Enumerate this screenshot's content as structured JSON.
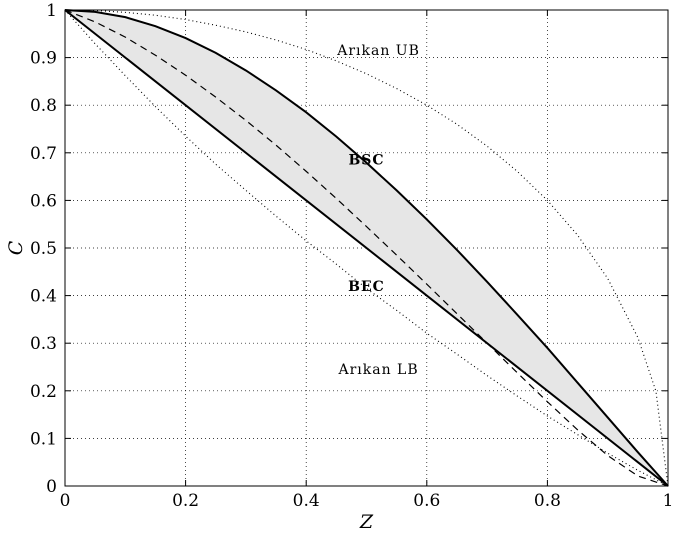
{
  "chart_data": {
    "type": "line",
    "xlabel": "Z",
    "ylabel": "C",
    "xlim": [
      0,
      1
    ],
    "ylim": [
      0,
      1
    ],
    "grid": true,
    "x_ticks": [
      "0",
      "0.2",
      "0.4",
      "0.6",
      "0.8",
      "1"
    ],
    "y_ticks": [
      "0",
      "0.1",
      "0.2",
      "0.3",
      "0.4",
      "0.5",
      "0.6",
      "0.7",
      "0.8",
      "0.9",
      "1"
    ],
    "series": [
      {
        "name": "BSC",
        "style": "solid",
        "x": [
          0,
          0.05,
          0.1,
          0.15,
          0.2,
          0.25,
          0.3,
          0.35,
          0.4,
          0.45,
          0.5,
          0.55,
          0.6,
          0.65,
          0.7,
          0.75,
          0.8,
          0.85,
          0.9,
          0.95,
          1
        ],
        "y": [
          1,
          0.996,
          0.985,
          0.966,
          0.941,
          0.91,
          0.873,
          0.831,
          0.785,
          0.734,
          0.679,
          0.621,
          0.56,
          0.496,
          0.429,
          0.36,
          0.29,
          0.217,
          0.144,
          0.071,
          0
        ]
      },
      {
        "name": "BEC",
        "style": "solid",
        "x": [
          0,
          1
        ],
        "y": [
          1,
          0
        ]
      },
      {
        "name": "",
        "style": "dashed",
        "x": [
          0,
          0.05,
          0.1,
          0.15,
          0.2,
          0.25,
          0.3,
          0.35,
          0.4,
          0.45,
          0.5,
          0.55,
          0.6,
          0.65,
          0.7,
          0.75,
          0.8,
          0.85,
          0.9,
          0.95,
          1
        ],
        "y": [
          1,
          0.975,
          0.943,
          0.905,
          0.863,
          0.817,
          0.768,
          0.716,
          0.661,
          0.604,
          0.545,
          0.485,
          0.424,
          0.362,
          0.3,
          0.238,
          0.177,
          0.118,
          0.064,
          0.021,
          0
        ]
      },
      {
        "name": "Arıkan UB",
        "style": "dotted",
        "x": [
          0,
          0.05,
          0.1,
          0.15,
          0.2,
          0.25,
          0.3,
          0.35,
          0.4,
          0.45,
          0.5,
          0.55,
          0.6,
          0.65,
          0.7,
          0.75,
          0.8,
          0.85,
          0.9,
          0.95,
          0.98,
          1
        ],
        "y": [
          1,
          0.999,
          0.995,
          0.989,
          0.98,
          0.968,
          0.954,
          0.937,
          0.917,
          0.893,
          0.866,
          0.835,
          0.8,
          0.76,
          0.714,
          0.661,
          0.6,
          0.527,
          0.436,
          0.312,
          0.199,
          0
        ]
      },
      {
        "name": "Arıkan LB",
        "style": "dotted",
        "x": [
          0,
          0.05,
          0.1,
          0.15,
          0.2,
          0.25,
          0.3,
          0.35,
          0.4,
          0.45,
          0.5,
          0.55,
          0.6,
          0.65,
          0.7,
          0.75,
          0.8,
          0.85,
          0.9,
          0.95,
          1
        ],
        "y": [
          1,
          0.929,
          0.862,
          0.797,
          0.735,
          0.676,
          0.621,
          0.567,
          0.515,
          0.466,
          0.415,
          0.369,
          0.321,
          0.277,
          0.232,
          0.189,
          0.147,
          0.108,
          0.069,
          0.033,
          0
        ]
      }
    ],
    "shaded_region": {
      "between": [
        "BSC",
        "BEC"
      ],
      "color": "#e6e6e6"
    },
    "annotations": [
      {
        "text": "Arıkan UB",
        "x": 0.52,
        "y": 0.905,
        "bold": false
      },
      {
        "text": "BSC",
        "x": 0.5,
        "y": 0.675,
        "bold": true
      },
      {
        "text": "BEC",
        "x": 0.5,
        "y": 0.41,
        "bold": true
      },
      {
        "text": "Arıkan LB",
        "x": 0.52,
        "y": 0.235,
        "bold": false
      }
    ]
  }
}
